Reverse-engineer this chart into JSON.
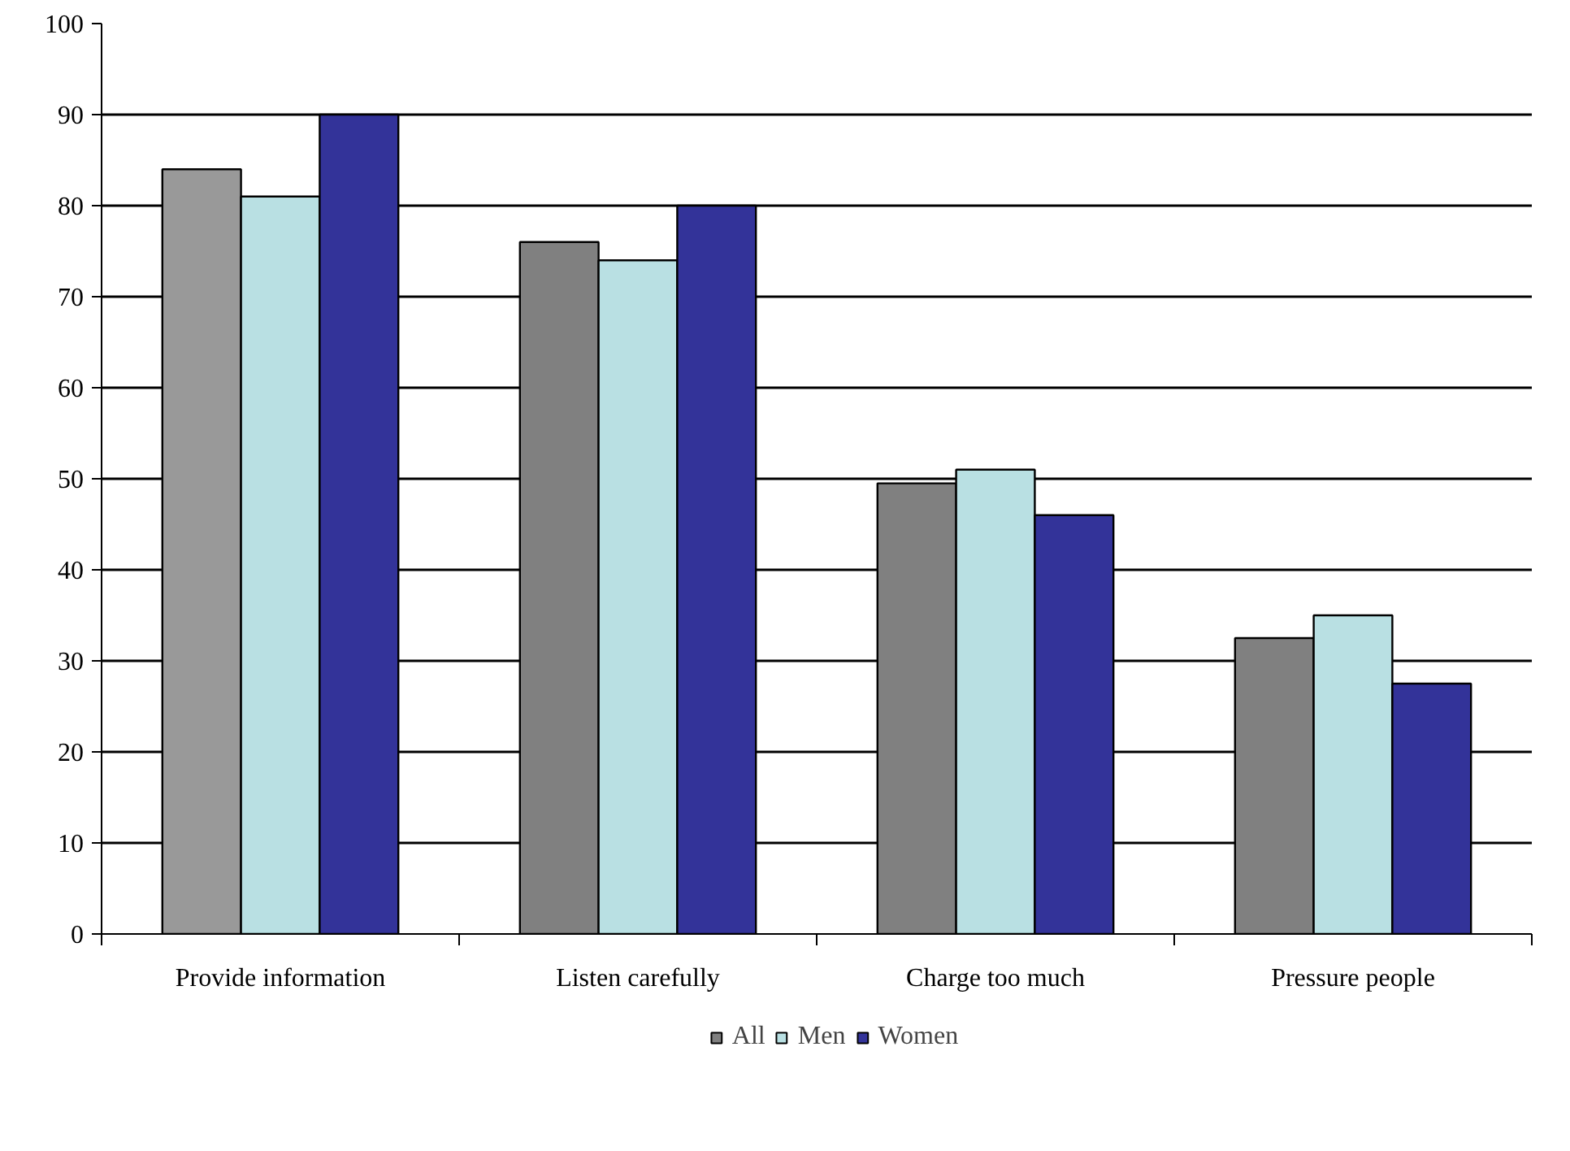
{
  "chart_data": {
    "type": "bar",
    "categories": [
      "Provide information",
      "Listen carefully",
      "Charge too much",
      "Pressure people"
    ],
    "series": [
      {
        "name": "All",
        "color": "#808080",
        "colors": [
          "#999999",
          "#808080",
          "#808080",
          "#808080"
        ],
        "values": [
          84,
          76,
          49.5,
          32.5
        ]
      },
      {
        "name": "Men",
        "color": "#b9e0e3",
        "values": [
          81,
          74,
          51,
          35
        ]
      },
      {
        "name": "Women",
        "color": "#333399",
        "values": [
          90,
          80,
          46,
          27.5
        ]
      }
    ],
    "ylim": [
      0,
      100
    ],
    "yticks": [
      0,
      10,
      20,
      30,
      40,
      50,
      60,
      70,
      80,
      90,
      100
    ],
    "grid": "y",
    "legend": "bottom"
  }
}
